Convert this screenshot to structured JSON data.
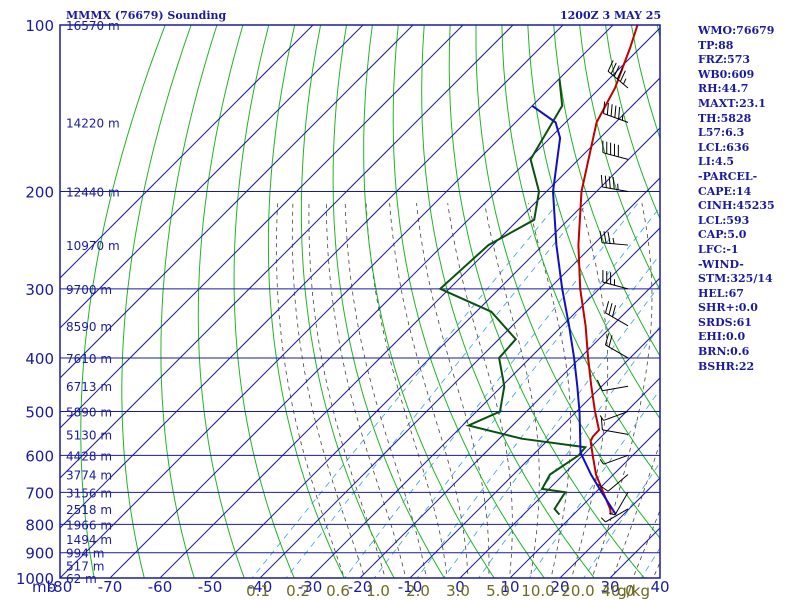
{
  "header": {
    "title": "MMMX (76679) Sounding",
    "time": "1200Z  3 MAY 25"
  },
  "indices": [
    "WMO:76679",
    "TP:88",
    "FRZ:573",
    "WB0:609",
    "RH:44.7",
    "MAXT:23.1",
    "TH:5828",
    "L57:6.3",
    "LCL:636",
    "LI:4.5",
    "-PARCEL-",
    "CAPE:14",
    "CINH:45235",
    "LCL:593",
    "CAP:5.0",
    "LFC:-1",
    "-WIND-",
    "STM:325/14",
    "HEL:67",
    "SHR+:0.0",
    "SRDS:61",
    "EHI:0.0",
    "BRN:0.6",
    "BSHR:22"
  ],
  "colors": {
    "background": "#ffffff",
    "frame_grid": "#1a1aa0",
    "temperature": "#c00000",
    "dewpoint": "#0a5010",
    "parcel": "#1010c0",
    "dry_adiabat": "#22b422",
    "moist_adiabat": "#444444",
    "mixing_ratio": "#4aa8e8",
    "mixing_label": "#6b6b1e"
  },
  "chart_data": {
    "type": "line",
    "title": "MMMX (76679) Sounding",
    "subtitle": "1200Z  3 MAY 25",
    "xlabel": "",
    "ylabel": "mb",
    "x_unit": "C",
    "y_axis_scale": "log",
    "xlim": [
      -80,
      0
    ],
    "ylim": [
      1000,
      100
    ],
    "skew_per_decade": 76,
    "grid": true,
    "pressure_ticks": [
      100,
      200,
      300,
      400,
      500,
      600,
      700,
      800,
      900,
      1000
    ],
    "temperature_ticks": [
      -80,
      -70,
      -60,
      -50,
      -40,
      -30,
      -20,
      -10,
      0,
      10,
      20,
      30,
      40
    ],
    "height_labels": [
      {
        "p": 100,
        "label": "16570 m"
      },
      {
        "p": 150,
        "label": "14220 m"
      },
      {
        "p": 200,
        "label": "12440 m"
      },
      {
        "p": 250,
        "label": "10970 m"
      },
      {
        "p": 300,
        "label": "9700 m"
      },
      {
        "p": 350,
        "label": "8590 m"
      },
      {
        "p": 400,
        "label": "7610 m"
      },
      {
        "p": 450,
        "label": "6713 m"
      },
      {
        "p": 500,
        "label": "5890 m"
      },
      {
        "p": 550,
        "label": "5130 m"
      },
      {
        "p": 600,
        "label": "4428 m"
      },
      {
        "p": 650,
        "label": "3774 m"
      },
      {
        "p": 700,
        "label": "3156 m"
      },
      {
        "p": 750,
        "label": "2518 m"
      },
      {
        "p": 800,
        "label": "1966 m"
      },
      {
        "p": 850,
        "label": "1494 m"
      },
      {
        "p": 900,
        "label": "994 m"
      },
      {
        "p": 950,
        "label": "517 m"
      },
      {
        "p": 1000,
        "label": "62 m"
      }
    ],
    "mixing_ratio_labels": [
      "0.1",
      "0.2",
      "0.6",
      "1.0",
      "2.0",
      "3.0",
      "5.0",
      "10.0",
      "20.0",
      "40.0"
    ],
    "mixing_ratio_unit": "g/kg",
    "series": [
      {
        "key": "temperature",
        "points": [
          {
            "p": 768,
            "t": 17.5
          },
          {
            "p": 750,
            "t": 16.2
          },
          {
            "p": 700,
            "t": 11.5
          },
          {
            "p": 650,
            "t": 6.5
          },
          {
            "p": 600,
            "t": 2.0
          },
          {
            "p": 565,
            "t": -1.3
          },
          {
            "p": 555,
            "t": -1.7
          },
          {
            "p": 540,
            "t": -1.8
          },
          {
            "p": 500,
            "t": -6.3
          },
          {
            "p": 450,
            "t": -12.1
          },
          {
            "p": 400,
            "t": -18.4
          },
          {
            "p": 350,
            "t": -25.3
          },
          {
            "p": 300,
            "t": -33.8
          },
          {
            "p": 250,
            "t": -42.9
          },
          {
            "p": 200,
            "t": -53.0
          },
          {
            "p": 150,
            "t": -63.8
          },
          {
            "p": 130,
            "t": -67.0
          },
          {
            "p": 110,
            "t": -72.0
          },
          {
            "p": 100,
            "t": -75.1
          }
        ]
      },
      {
        "key": "dewpoint",
        "points": [
          {
            "p": 768,
            "t": 7.2
          },
          {
            "p": 750,
            "t": 5.1
          },
          {
            "p": 700,
            "t": 3.9
          },
          {
            "p": 690,
            "t": -1.4
          },
          {
            "p": 650,
            "t": -2.7
          },
          {
            "p": 600,
            "t": -0.8
          },
          {
            "p": 580,
            "t": -1.1
          },
          {
            "p": 560,
            "t": -15.5
          },
          {
            "p": 530,
            "t": -28.8
          },
          {
            "p": 500,
            "t": -25.3
          },
          {
            "p": 450,
            "t": -29.5
          },
          {
            "p": 400,
            "t": -36.2
          },
          {
            "p": 370,
            "t": -36.6
          },
          {
            "p": 330,
            "t": -47.0
          },
          {
            "p": 300,
            "t": -61.8
          },
          {
            "p": 250,
            "t": -60.9
          },
          {
            "p": 225,
            "t": -56.8
          },
          {
            "p": 200,
            "t": -61.5
          },
          {
            "p": 175,
            "t": -69.6
          },
          {
            "p": 140,
            "t": -74.0
          },
          {
            "p": 125,
            "t": -80.0
          }
        ]
      },
      {
        "key": "parcel",
        "points": [
          {
            "p": 768,
            "t": 18.5
          },
          {
            "p": 700,
            "t": 11.2
          },
          {
            "p": 650,
            "t": 5.5
          },
          {
            "p": 593,
            "t": -1.0
          },
          {
            "p": 550,
            "t": -4.7
          },
          {
            "p": 500,
            "t": -9.4
          },
          {
            "p": 450,
            "t": -14.9
          },
          {
            "p": 400,
            "t": -21.2
          },
          {
            "p": 350,
            "t": -28.6
          },
          {
            "p": 300,
            "t": -37.4
          },
          {
            "p": 250,
            "t": -47.3
          },
          {
            "p": 200,
            "t": -58.7
          },
          {
            "p": 160,
            "t": -68.0
          },
          {
            "p": 150,
            "t": -72.0
          },
          {
            "p": 140,
            "t": -80.0
          }
        ]
      }
    ],
    "winds": [
      {
        "p": 130,
        "dir": 310,
        "spd": 55
      },
      {
        "p": 150,
        "dir": 290,
        "spd": 55
      },
      {
        "p": 175,
        "dir": 285,
        "spd": 50
      },
      {
        "p": 200,
        "dir": 280,
        "spd": 45
      },
      {
        "p": 250,
        "dir": 275,
        "spd": 35
      },
      {
        "p": 300,
        "dir": 285,
        "spd": 35
      },
      {
        "p": 350,
        "dir": 300,
        "spd": 30
      },
      {
        "p": 400,
        "dir": 300,
        "spd": 20
      },
      {
        "p": 450,
        "dir": 260,
        "spd": 10
      },
      {
        "p": 500,
        "dir": 250,
        "spd": 5
      },
      {
        "p": 550,
        "dir": 280,
        "spd": 10
      },
      {
        "p": 600,
        "dir": 250,
        "spd": 5
      },
      {
        "p": 650,
        "dir": 230,
        "spd": 10
      },
      {
        "p": 700,
        "dir": 210,
        "spd": 5
      },
      {
        "p": 750,
        "dir": 240,
        "spd": 5
      }
    ]
  }
}
